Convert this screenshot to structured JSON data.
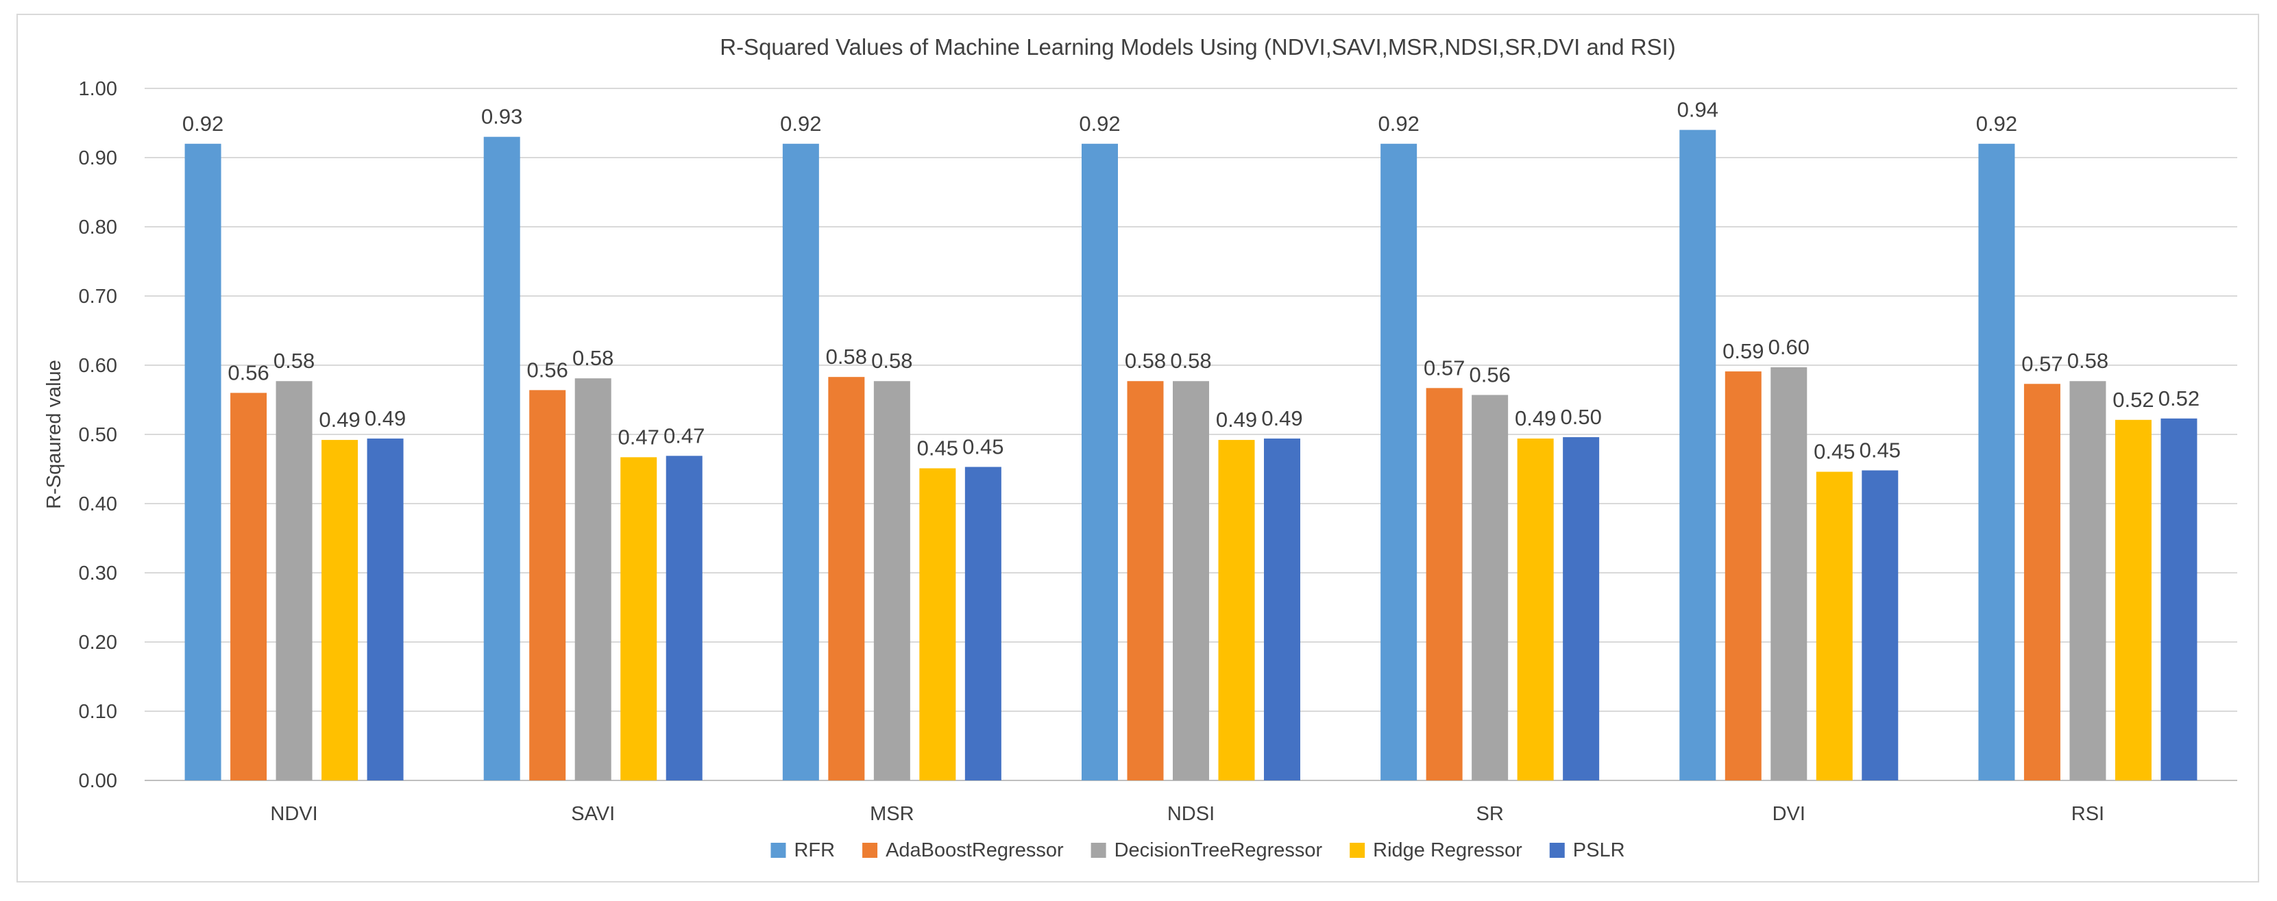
{
  "chart_data": {
    "type": "bar",
    "title": "R-Squared Values of Machine Learning Models Using (NDVI,SAVI,MSR,NDSI,SR,DVI and RSI)",
    "xlabel": "",
    "ylabel": "R-Sqaured value",
    "ylim": [
      0,
      1.0
    ],
    "ytick_step": 0.1,
    "ytick_labels": [
      "0.00",
      "0.10",
      "0.20",
      "0.30",
      "0.40",
      "0.50",
      "0.60",
      "0.70",
      "0.80",
      "0.90",
      "1.00"
    ],
    "grid": true,
    "legend_position": "bottom",
    "categories": [
      "NDVI",
      "SAVI",
      "MSR",
      "NDSI",
      "SR",
      "DVI",
      "RSI"
    ],
    "series": [
      {
        "name": "RFR",
        "color": "#5B9BD5",
        "values": [
          0.92,
          0.93,
          0.92,
          0.92,
          0.92,
          0.94,
          0.92
        ],
        "labels": [
          "0.92",
          "0.93",
          "0.92",
          "0.92",
          "0.92",
          "0.94",
          "0.92"
        ]
      },
      {
        "name": "AdaBoostRegressor",
        "color": "#ED7D31",
        "values": [
          0.56,
          0.564,
          0.583,
          0.577,
          0.567,
          0.591,
          0.573
        ],
        "labels": [
          "0.56",
          "0.56",
          "0.58",
          "0.58",
          "0.57",
          "0.59",
          "0.57"
        ]
      },
      {
        "name": "DecisionTreeRegressor",
        "color": "#A5A5A5",
        "values": [
          0.577,
          0.581,
          0.577,
          0.577,
          0.557,
          0.597,
          0.577
        ],
        "labels": [
          "0.58",
          "0.58",
          "0.58",
          "0.58",
          "0.56",
          "0.60",
          "0.58"
        ]
      },
      {
        "name": "Ridge Regressor",
        "color": "#FFC000",
        "values": [
          0.492,
          0.467,
          0.451,
          0.492,
          0.494,
          0.446,
          0.521
        ],
        "labels": [
          "0.49",
          "0.47",
          "0.45",
          "0.49",
          "0.49",
          "0.45",
          "0.52"
        ]
      },
      {
        "name": "PSLR",
        "color": "#4472C4",
        "values": [
          0.494,
          0.469,
          0.453,
          0.494,
          0.496,
          0.448,
          0.523
        ],
        "labels": [
          "0.49",
          "0.47",
          "0.45",
          "0.49",
          "0.50",
          "0.45",
          "0.52"
        ]
      }
    ]
  }
}
